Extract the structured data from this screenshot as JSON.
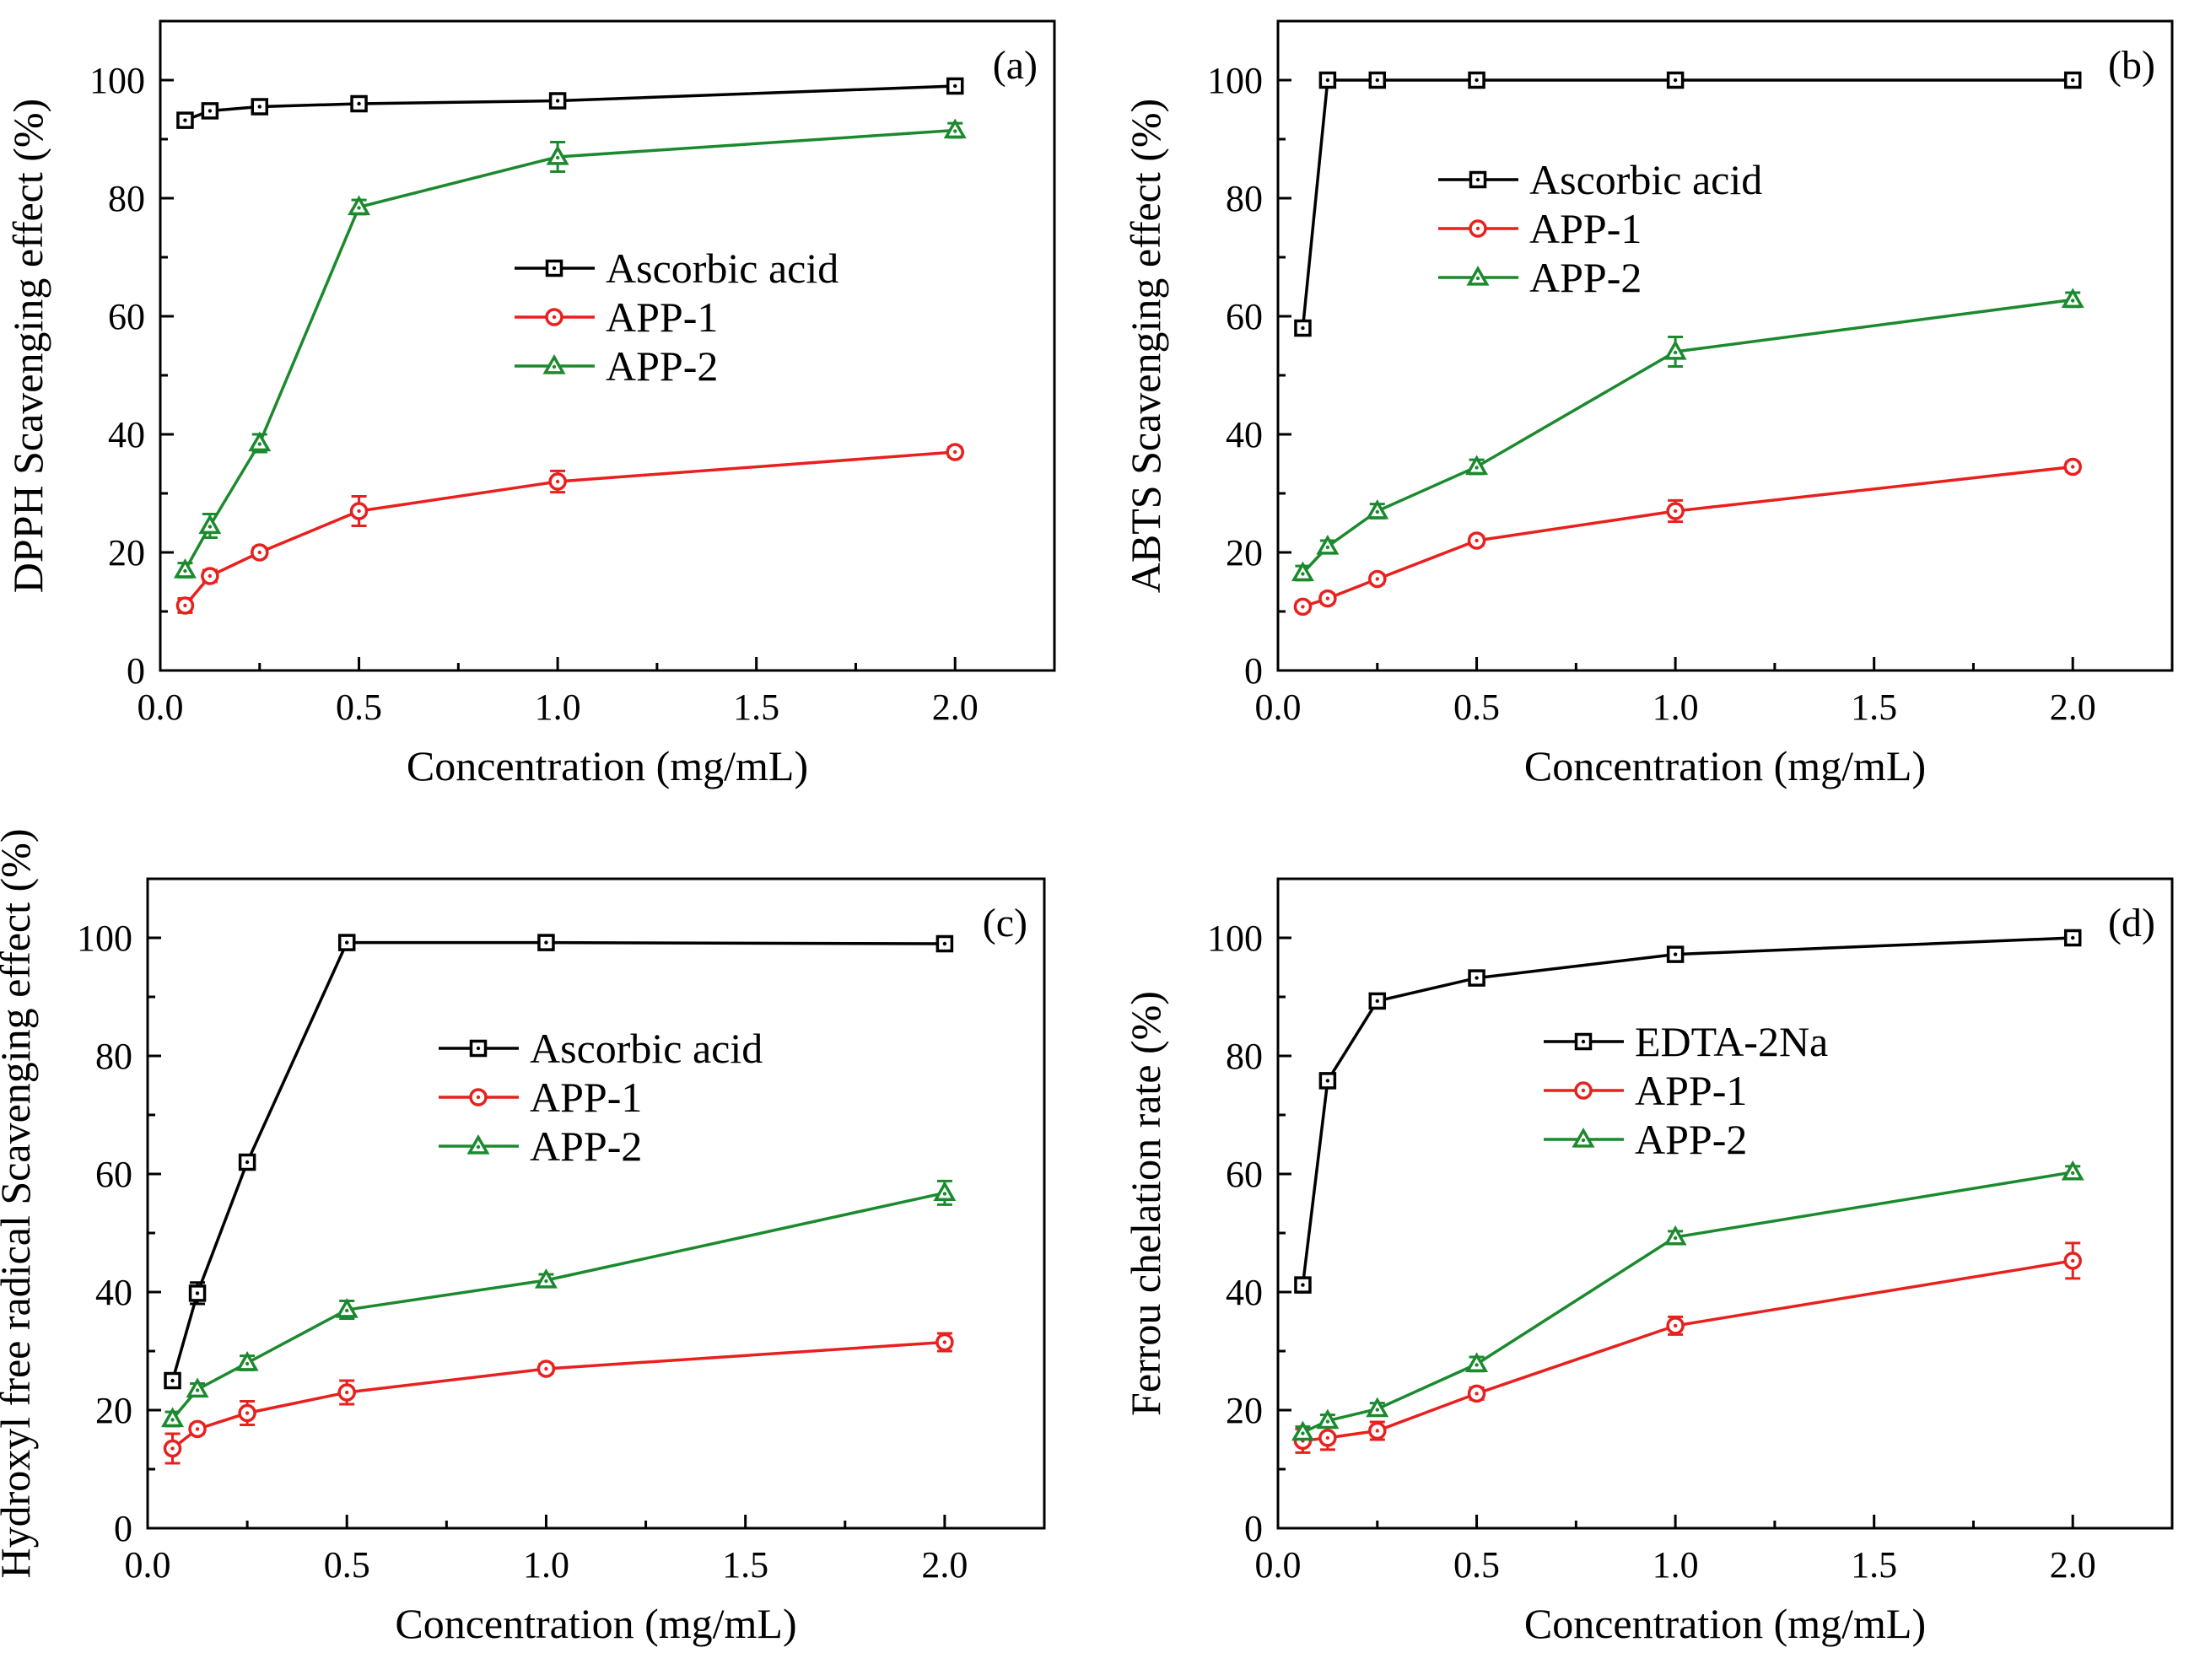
{
  "chart_data": [
    {
      "type": "line",
      "panel": "(a)",
      "xlabel": "Concentration (mg/mL)",
      "ylabel": "DPPH Scavenging effect (%)",
      "xlim": [
        0,
        2.25
      ],
      "ylim": [
        0,
        110
      ],
      "xticks": [
        "0.0",
        "0.5",
        "1.0",
        "1.5",
        "2.0"
      ],
      "yticks": [
        "0",
        "20",
        "40",
        "60",
        "80",
        "100"
      ],
      "legend_position": "center",
      "x": [
        0.0625,
        0.125,
        0.25,
        0.5,
        1.0,
        2.0
      ],
      "series": [
        {
          "name": "Ascorbic acid",
          "color": "#000000",
          "marker": "square",
          "values": [
            93.2,
            94.8,
            95.5,
            96.0,
            96.5,
            99.0
          ],
          "errors": [
            0.8,
            0.8,
            0.6,
            0.6,
            0.8,
            0.6
          ]
        },
        {
          "name": "APP-1",
          "color": "#e8201e",
          "marker": "circle",
          "values": [
            11.0,
            16.0,
            20.0,
            27.0,
            32.0,
            37.0
          ],
          "errors": [
            1.2,
            1.0,
            0.8,
            2.5,
            1.8,
            0.8
          ]
        },
        {
          "name": "APP-2",
          "color": "#1b8a2e",
          "marker": "triangle",
          "values": [
            17.0,
            24.5,
            38.5,
            78.5,
            87.0,
            91.5
          ],
          "errors": [
            1.2,
            2.0,
            1.5,
            1.2,
            2.5,
            1.2
          ]
        }
      ]
    },
    {
      "type": "line",
      "panel": "(b)",
      "xlabel": "Concentration (mg/mL)",
      "ylabel": "ABTS Scavenging effect (%)",
      "xlim": [
        0,
        2.25
      ],
      "ylim": [
        0,
        110
      ],
      "xticks": [
        "0.0",
        "0.5",
        "1.0",
        "1.5",
        "2.0"
      ],
      "yticks": [
        "0",
        "20",
        "40",
        "60",
        "80",
        "100"
      ],
      "legend_position": "upper-left",
      "x": [
        0.0625,
        0.125,
        0.25,
        0.5,
        1.0,
        2.0
      ],
      "series": [
        {
          "name": "Ascorbic acid",
          "color": "#000000",
          "marker": "square",
          "values": [
            58.0,
            100.0,
            100.0,
            100.0,
            100.0,
            100.0
          ],
          "errors": [
            0.8,
            0.5,
            0.5,
            0.5,
            0.5,
            0.5
          ]
        },
        {
          "name": "APP-1",
          "color": "#e8201e",
          "marker": "circle",
          "values": [
            10.8,
            12.2,
            15.5,
            22.0,
            27.0,
            34.5
          ],
          "errors": [
            0.8,
            0.8,
            0.8,
            0.8,
            1.8,
            0.8
          ]
        },
        {
          "name": "APP-2",
          "color": "#1b8a2e",
          "marker": "triangle",
          "values": [
            16.5,
            21.0,
            27.0,
            34.5,
            54.0,
            62.8
          ],
          "errors": [
            1.2,
            1.0,
            1.2,
            1.2,
            2.5,
            1.2
          ]
        }
      ]
    },
    {
      "type": "line",
      "panel": "(c)",
      "xlabel": "Concentration (mg/mL)",
      "ylabel": "Hydroxyl free radical Scavenging effect (%)",
      "xlim": [
        0,
        2.25
      ],
      "ylim": [
        0,
        110
      ],
      "xticks": [
        "0.0",
        "0.5",
        "1.0",
        "1.5",
        "2.0"
      ],
      "yticks": [
        "0",
        "20",
        "40",
        "60",
        "80",
        "100"
      ],
      "legend_position": "center",
      "x": [
        0.0625,
        0.125,
        0.25,
        0.5,
        1.0,
        2.0
      ],
      "series": [
        {
          "name": "Ascorbic acid",
          "color": "#000000",
          "marker": "square",
          "values": [
            25.0,
            39.8,
            62.0,
            99.2,
            99.2,
            99.0
          ],
          "errors": [
            0.8,
            1.8,
            0.8,
            0.5,
            0.5,
            0.5
          ]
        },
        {
          "name": "APP-1",
          "color": "#e8201e",
          "marker": "circle",
          "values": [
            13.5,
            16.8,
            19.5,
            23.0,
            27.0,
            31.5
          ],
          "errors": [
            2.5,
            0.8,
            2.0,
            2.0,
            0.8,
            1.5
          ]
        },
        {
          "name": "APP-2",
          "color": "#1b8a2e",
          "marker": "triangle",
          "values": [
            18.5,
            23.5,
            28.0,
            37.0,
            42.0,
            56.8
          ],
          "errors": [
            1.2,
            1.0,
            1.2,
            1.5,
            1.0,
            2.0
          ]
        }
      ]
    },
    {
      "type": "line",
      "panel": "(d)",
      "xlabel": "Concentration (mg/mL)",
      "ylabel": "Ferrou chelation rate (%)",
      "xlim": [
        0,
        2.25
      ],
      "ylim": [
        0,
        110
      ],
      "xticks": [
        "0.0",
        "0.5",
        "1.0",
        "1.5",
        "2.0"
      ],
      "yticks": [
        "0",
        "20",
        "40",
        "60",
        "80",
        "100"
      ],
      "legend_position": "center",
      "x": [
        0.0625,
        0.125,
        0.25,
        0.5,
        1.0,
        2.0
      ],
      "series": [
        {
          "name": "EDTA-2Na",
          "color": "#000000",
          "marker": "square",
          "values": [
            41.2,
            75.8,
            89.3,
            93.2,
            97.2,
            100.0
          ],
          "errors": [
            0.8,
            0.8,
            0.8,
            0.6,
            0.5,
            0.5
          ]
        },
        {
          "name": "APP-1",
          "color": "#e8201e",
          "marker": "circle",
          "values": [
            14.8,
            15.3,
            16.5,
            22.8,
            34.3,
            45.3
          ],
          "errors": [
            2.0,
            2.0,
            1.5,
            1.0,
            1.5,
            3.0
          ]
        },
        {
          "name": "APP-2",
          "color": "#1b8a2e",
          "marker": "triangle",
          "values": [
            16.2,
            18.2,
            20.2,
            27.8,
            49.3,
            60.3
          ],
          "errors": [
            1.0,
            1.0,
            1.0,
            1.2,
            1.0,
            1.0
          ]
        }
      ]
    }
  ]
}
